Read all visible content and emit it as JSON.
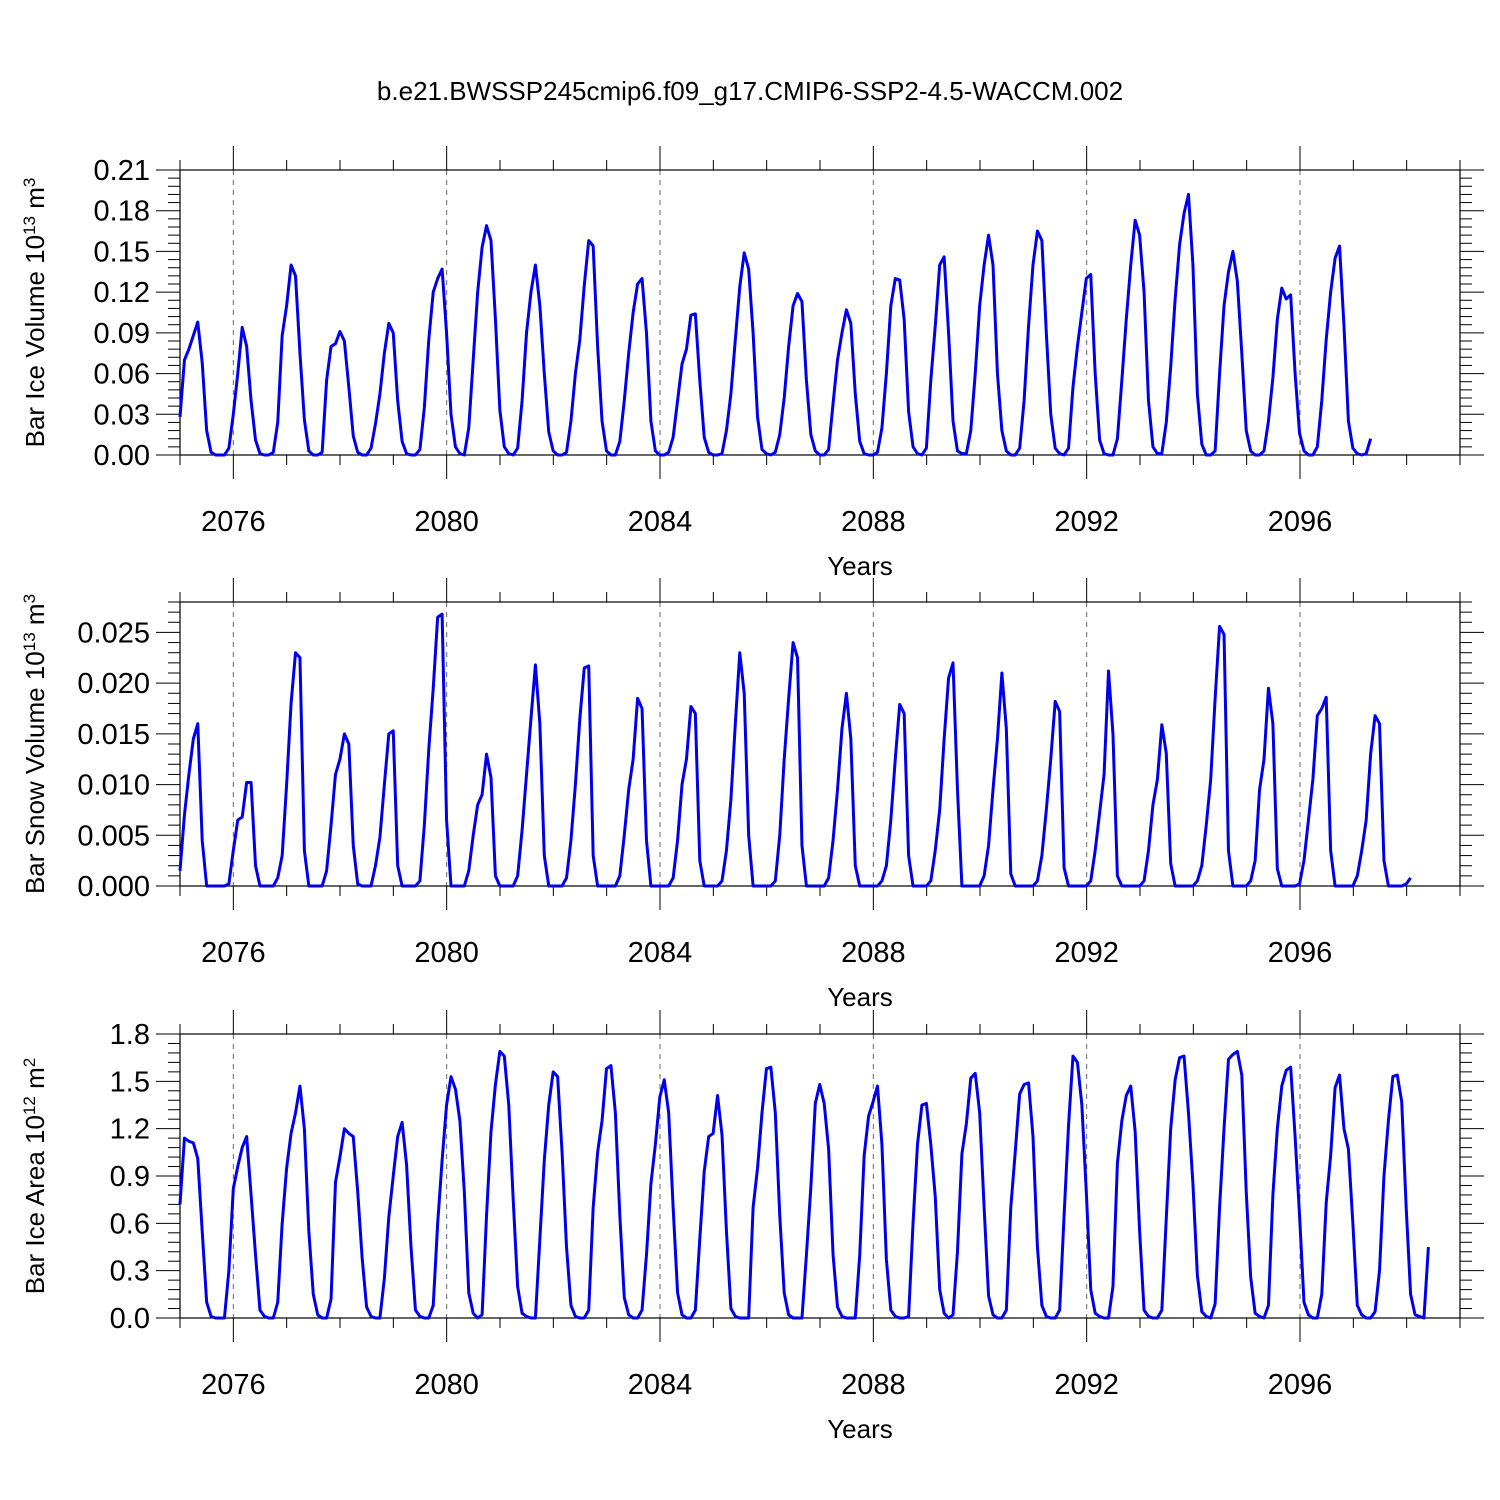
{
  "title": "b.e21.BWSSP245cmip6.f09_g17.CMIP6-SSP2-4.5-WACCM.002",
  "colors": {
    "series": "#0000ee",
    "axis": "#000000",
    "grid": "#666666"
  },
  "chart_data": [
    {
      "type": "line",
      "ylabel": "Bar Ice Volume 10",
      "ylabel_exponent": "13",
      "ylabel_unit": " m",
      "ylabel_unit_exponent": "3",
      "xlabel": "Years",
      "xlim": [
        2075.0,
        2099.0
      ],
      "ylim": [
        0,
        0.21
      ],
      "yticks": [
        "0.00",
        "0.03",
        "0.06",
        "0.09",
        "0.12",
        "0.15",
        "0.18",
        "0.21"
      ],
      "xticks": [
        "2076",
        "2080",
        "2084",
        "2088",
        "2092",
        "2096"
      ],
      "grid": "vertical dashed at labeled years",
      "x_start": 2075.0,
      "x_step": 0.0833,
      "values": [
        0.028,
        0.07,
        0.078,
        0.088,
        0.098,
        0.068,
        0.018,
        0.002,
        0.0,
        0.0,
        0.0,
        0.005,
        0.03,
        0.06,
        0.094,
        0.08,
        0.04,
        0.011,
        0.001,
        0.0,
        0.0,
        0.002,
        0.024,
        0.088,
        0.11,
        0.14,
        0.132,
        0.075,
        0.026,
        0.003,
        0.0,
        0.0,
        0.002,
        0.055,
        0.08,
        0.082,
        0.091,
        0.084,
        0.05,
        0.014,
        0.002,
        0.0,
        0.0,
        0.005,
        0.023,
        0.045,
        0.075,
        0.097,
        0.09,
        0.04,
        0.01,
        0.001,
        0.0,
        0.0,
        0.004,
        0.035,
        0.085,
        0.12,
        0.13,
        0.137,
        0.09,
        0.03,
        0.006,
        0.001,
        0.0,
        0.02,
        0.07,
        0.12,
        0.153,
        0.169,
        0.158,
        0.1,
        0.033,
        0.006,
        0.001,
        0.0,
        0.005,
        0.04,
        0.09,
        0.12,
        0.14,
        0.11,
        0.06,
        0.017,
        0.003,
        0.0,
        0.0,
        0.002,
        0.025,
        0.06,
        0.085,
        0.125,
        0.158,
        0.154,
        0.08,
        0.025,
        0.003,
        0.0,
        0.0,
        0.01,
        0.04,
        0.075,
        0.105,
        0.126,
        0.13,
        0.09,
        0.025,
        0.003,
        0.0,
        0.0,
        0.002,
        0.013,
        0.04,
        0.067,
        0.078,
        0.103,
        0.104,
        0.055,
        0.013,
        0.002,
        0.0,
        0.0,
        0.001,
        0.018,
        0.045,
        0.085,
        0.124,
        0.149,
        0.137,
        0.09,
        0.028,
        0.004,
        0.001,
        0.0,
        0.002,
        0.015,
        0.042,
        0.08,
        0.11,
        0.119,
        0.113,
        0.055,
        0.015,
        0.003,
        0.0,
        0.0,
        0.004,
        0.038,
        0.07,
        0.09,
        0.107,
        0.097,
        0.045,
        0.01,
        0.001,
        0.0,
        0.0,
        0.002,
        0.02,
        0.06,
        0.11,
        0.13,
        0.129,
        0.1,
        0.032,
        0.006,
        0.001,
        0.0,
        0.005,
        0.055,
        0.095,
        0.14,
        0.146,
        0.09,
        0.025,
        0.003,
        0.001,
        0.001,
        0.018,
        0.06,
        0.11,
        0.14,
        0.162,
        0.14,
        0.06,
        0.018,
        0.003,
        0.0,
        0.0,
        0.005,
        0.04,
        0.095,
        0.14,
        0.165,
        0.158,
        0.09,
        0.03,
        0.005,
        0.001,
        0.0,
        0.005,
        0.05,
        0.08,
        0.105,
        0.13,
        0.133,
        0.06,
        0.011,
        0.001,
        0.0,
        0.0,
        0.012,
        0.055,
        0.1,
        0.14,
        0.173,
        0.162,
        0.12,
        0.04,
        0.006,
        0.001,
        0.001,
        0.024,
        0.065,
        0.115,
        0.155,
        0.178,
        0.192,
        0.14,
        0.045,
        0.008,
        0.0,
        0.0,
        0.003,
        0.06,
        0.11,
        0.135,
        0.15,
        0.128,
        0.075,
        0.018,
        0.003,
        0.0,
        0.0,
        0.003,
        0.025,
        0.057,
        0.1,
        0.123,
        0.115,
        0.118,
        0.06,
        0.016,
        0.003,
        0.0,
        0.0,
        0.006,
        0.04,
        0.085,
        0.12,
        0.145,
        0.154,
        0.095,
        0.025,
        0.005,
        0.001,
        0.0,
        0.001,
        0.012
      ]
    },
    {
      "type": "line",
      "ylabel": "Bar Snow Volume 10",
      "ylabel_exponent": "13",
      "ylabel_unit": " m",
      "ylabel_unit_exponent": "3",
      "xlabel": "Years",
      "xlim": [
        2075.0,
        2099.0
      ],
      "ylim": [
        0,
        0.028
      ],
      "yticks": [
        "0.000",
        "0.005",
        "0.010",
        "0.015",
        "0.020",
        "0.025"
      ],
      "ytick_values": [
        0,
        0.005,
        0.01,
        0.015,
        0.02,
        0.025
      ],
      "xticks": [
        "2076",
        "2080",
        "2084",
        "2088",
        "2092",
        "2096"
      ],
      "grid": "vertical dashed at labeled years",
      "x_start": 2075.0,
      "x_step": 0.0833,
      "values": [
        0.0015,
        0.007,
        0.011,
        0.0145,
        0.016,
        0.0045,
        0.0,
        0.0,
        0.0,
        0.0,
        0.0,
        0.0002,
        0.0035,
        0.0065,
        0.0068,
        0.0102,
        0.0102,
        0.002,
        0.0,
        0.0,
        0.0,
        0.0,
        0.0008,
        0.003,
        0.01,
        0.018,
        0.023,
        0.0225,
        0.0035,
        0.0,
        0.0,
        0.0,
        0.0,
        0.0015,
        0.006,
        0.011,
        0.0125,
        0.015,
        0.014,
        0.004,
        0.0002,
        0.0,
        0.0,
        0.0,
        0.002,
        0.0048,
        0.01,
        0.015,
        0.0153,
        0.002,
        0.0,
        0.0,
        0.0,
        0.0,
        0.0005,
        0.006,
        0.0135,
        0.0195,
        0.0265,
        0.0268,
        0.0065,
        0.0,
        0.0,
        0.0,
        0.0,
        0.0015,
        0.005,
        0.008,
        0.009,
        0.013,
        0.0107,
        0.001,
        0.0,
        0.0,
        0.0,
        0.0,
        0.001,
        0.0055,
        0.011,
        0.0165,
        0.0218,
        0.016,
        0.003,
        0.0,
        0.0,
        0.0,
        0.0,
        0.0008,
        0.0045,
        0.01,
        0.0165,
        0.0215,
        0.0217,
        0.003,
        0.0,
        0.0,
        0.0,
        0.0,
        0.0,
        0.001,
        0.005,
        0.0095,
        0.0125,
        0.0185,
        0.0175,
        0.0045,
        0.0,
        0.0,
        0.0,
        0.0,
        0.0,
        0.0008,
        0.0045,
        0.01,
        0.0125,
        0.0177,
        0.017,
        0.0025,
        0.0,
        0.0,
        0.0,
        0.0,
        0.0005,
        0.0035,
        0.0085,
        0.016,
        0.023,
        0.019,
        0.005,
        0.0,
        0.0,
        0.0,
        0.0,
        0.0,
        0.0005,
        0.005,
        0.0125,
        0.0185,
        0.024,
        0.0225,
        0.004,
        0.0,
        0.0,
        0.0,
        0.0,
        0.0,
        0.0008,
        0.0045,
        0.0095,
        0.0155,
        0.019,
        0.0145,
        0.002,
        0.0,
        0.0,
        0.0,
        0.0,
        0.0,
        0.0005,
        0.002,
        0.0065,
        0.0125,
        0.0179,
        0.017,
        0.003,
        0.0,
        0.0,
        0.0,
        0.0,
        0.0005,
        0.0035,
        0.0075,
        0.0145,
        0.0205,
        0.022,
        0.0095,
        0.0,
        0.0,
        0.0,
        0.0,
        0.0,
        0.001,
        0.004,
        0.0095,
        0.0145,
        0.021,
        0.0155,
        0.0012,
        0.0,
        0.0,
        0.0,
        0.0,
        0.0,
        0.0005,
        0.003,
        0.0075,
        0.0125,
        0.0182,
        0.0172,
        0.0018,
        0.0,
        0.0,
        0.0,
        0.0,
        0.0,
        0.0005,
        0.0035,
        0.0072,
        0.011,
        0.0212,
        0.015,
        0.001,
        0.0,
        0.0,
        0.0,
        0.0,
        0.0,
        0.0005,
        0.0035,
        0.008,
        0.0105,
        0.0159,
        0.0131,
        0.0022,
        0.0,
        0.0,
        0.0,
        0.0,
        0.0,
        0.0005,
        0.002,
        0.006,
        0.0105,
        0.0185,
        0.0256,
        0.0248,
        0.0035,
        0.0,
        0.0,
        0.0,
        0.0,
        0.0005,
        0.0025,
        0.0095,
        0.0125,
        0.0195,
        0.016,
        0.0017,
        0.0,
        0.0,
        0.0,
        0.0,
        0.0002,
        0.0025,
        0.0065,
        0.0105,
        0.0168,
        0.0175,
        0.0186,
        0.0035,
        0.0,
        0.0,
        0.0,
        0.0,
        0.0,
        0.001,
        0.0035,
        0.0065,
        0.013,
        0.0168,
        0.016,
        0.0025,
        0.0,
        0.0,
        0.0,
        0.0,
        0.0002,
        0.0008
      ]
    },
    {
      "type": "line",
      "ylabel": "Bar Ice Area 10",
      "ylabel_exponent": "12",
      "ylabel_unit": " m",
      "ylabel_unit_exponent": "2",
      "xlabel": "Years",
      "xlim": [
        2075.0,
        2099.0
      ],
      "ylim": [
        0,
        1.8
      ],
      "yticks": [
        "0.0",
        "0.3",
        "0.6",
        "0.9",
        "1.2",
        "1.5",
        "1.8"
      ],
      "xticks": [
        "2076",
        "2080",
        "2084",
        "2088",
        "2092",
        "2096"
      ],
      "grid": "vertical dashed at labeled years",
      "x_start": 2075.0,
      "x_step": 0.0833,
      "values": [
        0.72,
        1.14,
        1.12,
        1.11,
        1.01,
        0.55,
        0.1,
        0.01,
        0.0,
        0.0,
        0.0,
        0.3,
        0.82,
        0.96,
        1.08,
        1.15,
        0.78,
        0.4,
        0.05,
        0.01,
        0.0,
        0.0,
        0.1,
        0.6,
        0.95,
        1.17,
        1.3,
        1.47,
        1.2,
        0.55,
        0.15,
        0.02,
        0.0,
        0.0,
        0.12,
        0.86,
        1.02,
        1.2,
        1.17,
        1.15,
        0.8,
        0.38,
        0.07,
        0.01,
        0.0,
        0.0,
        0.25,
        0.64,
        0.9,
        1.15,
        1.24,
        0.97,
        0.45,
        0.05,
        0.01,
        0.0,
        0.0,
        0.08,
        0.6,
        1.0,
        1.35,
        1.53,
        1.45,
        1.25,
        0.8,
        0.16,
        0.03,
        0.0,
        0.02,
        0.65,
        1.18,
        1.48,
        1.69,
        1.66,
        1.35,
        0.75,
        0.2,
        0.03,
        0.01,
        0.0,
        0.0,
        0.5,
        1.0,
        1.35,
        1.56,
        1.53,
        1.05,
        0.45,
        0.08,
        0.01,
        0.0,
        0.0,
        0.05,
        0.7,
        1.05,
        1.25,
        1.58,
        1.6,
        1.3,
        0.65,
        0.13,
        0.02,
        0.0,
        0.0,
        0.05,
        0.4,
        0.85,
        1.1,
        1.4,
        1.51,
        1.3,
        0.7,
        0.16,
        0.02,
        0.0,
        0.0,
        0.05,
        0.5,
        0.93,
        1.15,
        1.17,
        1.41,
        1.16,
        0.55,
        0.06,
        0.01,
        0.0,
        0.0,
        0.0,
        0.7,
        0.95,
        1.3,
        1.58,
        1.59,
        1.3,
        0.65,
        0.16,
        0.02,
        0.0,
        0.0,
        0.0,
        0.4,
        0.83,
        1.36,
        1.48,
        1.36,
        1.07,
        0.4,
        0.07,
        0.01,
        0.0,
        0.0,
        0.0,
        0.4,
        1.03,
        1.28,
        1.37,
        1.47,
        1.1,
        0.37,
        0.05,
        0.01,
        0.0,
        0.0,
        0.01,
        0.6,
        1.1,
        1.35,
        1.36,
        1.1,
        0.77,
        0.18,
        0.03,
        0.0,
        0.02,
        0.42,
        1.04,
        1.23,
        1.52,
        1.55,
        1.3,
        0.7,
        0.14,
        0.02,
        0.0,
        0.0,
        0.05,
        0.7,
        1.05,
        1.42,
        1.48,
        1.49,
        1.15,
        0.45,
        0.08,
        0.01,
        0.0,
        0.0,
        0.05,
        0.65,
        1.22,
        1.66,
        1.62,
        1.35,
        0.8,
        0.18,
        0.03,
        0.01,
        0.0,
        0.0,
        0.2,
        0.98,
        1.25,
        1.41,
        1.47,
        1.18,
        0.55,
        0.05,
        0.01,
        0.0,
        0.0,
        0.05,
        0.63,
        1.2,
        1.51,
        1.65,
        1.66,
        1.3,
        0.85,
        0.27,
        0.04,
        0.01,
        0.0,
        0.09,
        0.7,
        1.2,
        1.64,
        1.67,
        1.69,
        1.54,
        0.8,
        0.26,
        0.03,
        0.01,
        0.0,
        0.08,
        0.78,
        1.2,
        1.47,
        1.57,
        1.59,
        1.15,
        0.65,
        0.1,
        0.02,
        0.0,
        0.0,
        0.15,
        0.73,
        1.03,
        1.46,
        1.54,
        1.2,
        1.07,
        0.6,
        0.08,
        0.02,
        0.0,
        0.0,
        0.04,
        0.3,
        0.9,
        1.25,
        1.53,
        1.54,
        1.37,
        0.7,
        0.15,
        0.02,
        0.01,
        0.0,
        0.45
      ]
    }
  ]
}
